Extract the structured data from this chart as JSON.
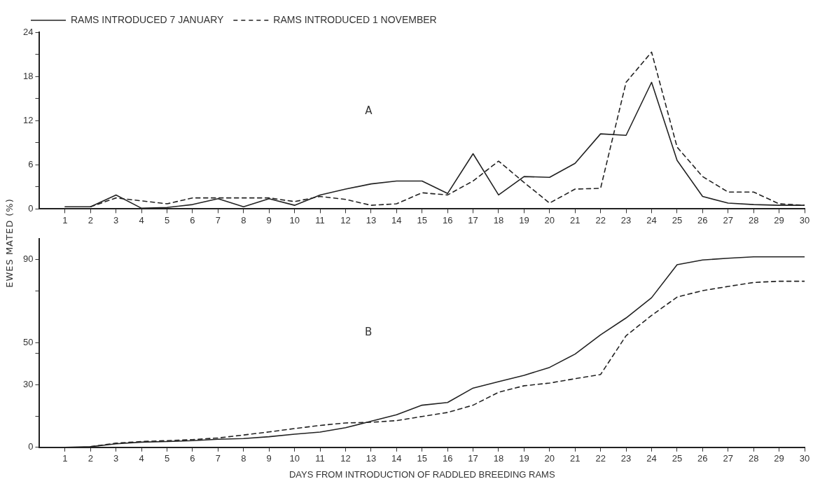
{
  "chart_data": [
    {
      "type": "line",
      "ylabel": "EWES MATED (%)",
      "annotations": [
        "A"
      ],
      "x": [
        1,
        2,
        3,
        4,
        5,
        6,
        7,
        8,
        9,
        10,
        11,
        12,
        13,
        14,
        15,
        16,
        17,
        18,
        19,
        20,
        21,
        22,
        23,
        24,
        25,
        26,
        27,
        28,
        29,
        30
      ],
      "xlim": [
        0,
        30
      ],
      "xticks": [
        1,
        2,
        3,
        4,
        5,
        6,
        7,
        8,
        9,
        10,
        11,
        12,
        13,
        14,
        15,
        16,
        17,
        18,
        19,
        20,
        21,
        22,
        23,
        24,
        25,
        26,
        27,
        28,
        29,
        30
      ],
      "ylim": [
        0,
        24
      ],
      "yticks": [
        0,
        {
          "value": 3,
          "label": null
        },
        6,
        {
          "value": 9,
          "label": null
        },
        12,
        {
          "value": 15,
          "label": null
        },
        18,
        {
          "value": 21,
          "label": null
        },
        24
      ],
      "grid": false,
      "legend": "top left",
      "marker": "none",
      "series": [
        {
          "name": "RAMS INTRODUCED 7 JANUARY",
          "color": "#222222",
          "line_style": "solid",
          "values": [
            0.3,
            0.3,
            1.9,
            0.1,
            0.2,
            0.6,
            1.4,
            0.3,
            1.4,
            0.5,
            1.9,
            2.7,
            3.4,
            3.8,
            3.8,
            2.1,
            7.5,
            1.9,
            4.4,
            4.3,
            6.2,
            10.2,
            10,
            17.2,
            6.6,
            1.7,
            0.8,
            0.6,
            0.5,
            0.5
          ]
        },
        {
          "name": "RAMS INTRODUCED 1 NOVEMBER",
          "color": "#222222",
          "line_style": "dashed",
          "values": [
            null,
            0.3,
            1.5,
            1.1,
            0.7,
            1.5,
            1.5,
            1.5,
            1.5,
            1,
            1.7,
            1.3,
            0.5,
            0.7,
            2.2,
            1.9,
            3.8,
            6.5,
            3.6,
            0.8,
            2.7,
            2.8,
            17.2,
            21.3,
            8.4,
            4.4,
            2.3,
            2.3,
            0.7,
            0.5
          ]
        }
      ]
    },
    {
      "type": "line",
      "xlabel": "DAYS FROM INTRODUCTION OF RADDLED BREEDING RAMS",
      "annotations": [
        "B"
      ],
      "x": [
        1,
        2,
        3,
        4,
        5,
        6,
        7,
        8,
        9,
        10,
        11,
        12,
        13,
        14,
        15,
        16,
        17,
        18,
        19,
        20,
        21,
        22,
        23,
        24,
        25,
        26,
        27,
        28,
        29,
        30
      ],
      "xlim": [
        0,
        30
      ],
      "xticks": [
        1,
        2,
        3,
        4,
        5,
        6,
        7,
        8,
        9,
        10,
        11,
        12,
        13,
        14,
        15,
        16,
        17,
        18,
        19,
        20,
        21,
        22,
        23,
        24,
        25,
        26,
        27,
        28,
        29,
        30
      ],
      "ylim": [
        0,
        100
      ],
      "yticks": [
        0,
        {
          "value": 15,
          "label": null
        },
        30,
        {
          "value": 45,
          "label": null
        },
        50,
        {
          "value": 75,
          "label": null
        },
        90
      ],
      "grid": false,
      "legend": false,
      "marker": "none",
      "series": [
        {
          "color": "#222222",
          "line_style": "solid",
          "values": [
            0,
            0.3,
            1.7,
            2.5,
            2.8,
            3.2,
            3.9,
            4.2,
            5.1,
            6.3,
            7.3,
            9.4,
            12.5,
            15.6,
            20.2,
            21.5,
            28.4,
            31.5,
            34.5,
            38.3,
            44.7,
            53.9,
            62,
            71.7,
            87.5,
            89.8,
            90.6,
            91.3,
            91.3,
            91.3
          ]
        },
        {
          "color": "#222222",
          "line_style": "dashed",
          "values": [
            null,
            0.3,
            2,
            2.8,
            3.2,
            3.7,
            4.5,
            5.9,
            7.4,
            9,
            10.5,
            11.7,
            12,
            12.8,
            14.8,
            16.7,
            20.2,
            26.4,
            29.5,
            30.8,
            32.9,
            34.9,
            53.5,
            63.2,
            72,
            75.1,
            77.1,
            79,
            79.6,
            79.6
          ]
        }
      ]
    }
  ]
}
